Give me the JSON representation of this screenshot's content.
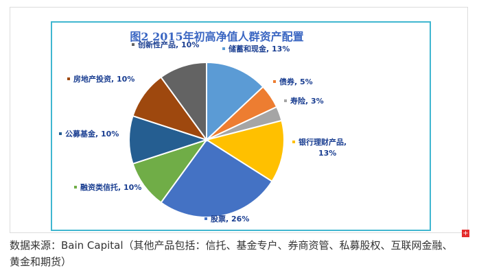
{
  "chart_data": {
    "type": "pie",
    "title": "图2  2015年初高净值人群资产配置",
    "slices": [
      {
        "label": "储蓄和现金",
        "value": 13,
        "display": "13%",
        "color": "#5b9bd5"
      },
      {
        "label": "债券",
        "value": 5,
        "display": "5%",
        "color": "#ed7d31"
      },
      {
        "label": "寿险",
        "value": 3,
        "display": "3%",
        "color": "#a5a5a5"
      },
      {
        "label": "银行理财产品",
        "value": 13,
        "display": "13%",
        "color": "#ffc000"
      },
      {
        "label": "股票",
        "value": 26,
        "display": "26%",
        "color": "#4472c4"
      },
      {
        "label": "融资类信托",
        "value": 10,
        "display": "10%",
        "color": "#70ad47"
      },
      {
        "label": "公募基金",
        "value": 10,
        "display": "10%",
        "color": "#255e91"
      },
      {
        "label": "房地产投资",
        "value": 10,
        "display": "10%",
        "color": "#9e480e"
      },
      {
        "label": "创新性产品",
        "value": 10,
        "display": "10%",
        "color": "#636363"
      }
    ],
    "legend": "none",
    "grid": false
  },
  "ui": {
    "plus_label": "+",
    "source_caption": "数据来源：Bain Capital（其他产品包括：信托、基金专户、券商资管、私募股权、互联网金融、黄金和期货）"
  }
}
